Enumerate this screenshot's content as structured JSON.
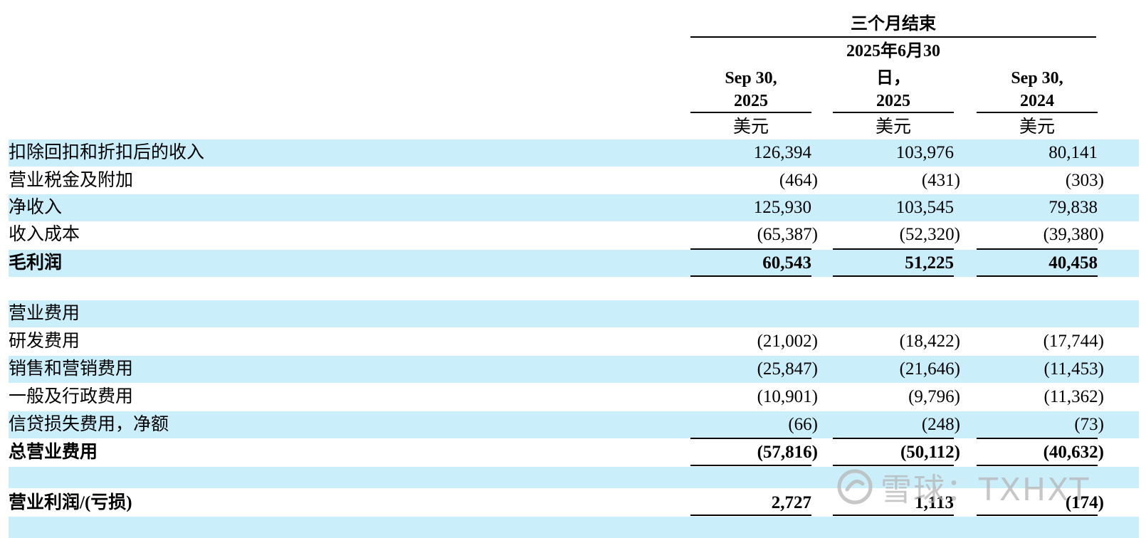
{
  "header": {
    "period_title": "三个月结束",
    "col1_date": "Sep 30,",
    "col1_year": "2025",
    "col2_date_a": "2025年6月30",
    "col2_date_b": "日，",
    "col2_year": "2025",
    "col3_date": "Sep 30,",
    "col3_year": "2024",
    "unit": "美元"
  },
  "rows": [
    {
      "label": "扣除回扣和折扣后的收入",
      "v1": "126,394",
      "v2": "103,976",
      "v3": "80,141"
    },
    {
      "label": "营业税金及附加",
      "v1": "(464)",
      "v2": "(431)",
      "v3": "(303)"
    },
    {
      "label": "净收入",
      "v1": "125,930",
      "v2": "103,545",
      "v3": "79,838"
    },
    {
      "label": "收入成本",
      "v1": "(65,387)",
      "v2": "(52,320)",
      "v3": "(39,380)"
    },
    {
      "label": "毛利润",
      "v1": "60,543",
      "v2": "51,225",
      "v3": "40,458"
    },
    {
      "label": "营业费用",
      "v1": "",
      "v2": "",
      "v3": ""
    },
    {
      "label": "研发费用",
      "v1": "(21,002)",
      "v2": "(18,422)",
      "v3": "(17,744)"
    },
    {
      "label": "销售和营销费用",
      "v1": "(25,847)",
      "v2": "(21,646)",
      "v3": "(11,453)"
    },
    {
      "label": "一般及行政费用",
      "v1": "(10,901)",
      "v2": "(9,796)",
      "v3": "(11,362)"
    },
    {
      "label": "信贷损失费用，净额",
      "v1": "(66)",
      "v2": "(248)",
      "v3": "(73)"
    },
    {
      "label": "总营业费用",
      "v1": "(57,816)",
      "v2": "(50,112)",
      "v3": "(40,632)"
    },
    {
      "label": "营业利润/(亏损)",
      "v1": "2,727",
      "v2": "1,113",
      "v3": "(174)"
    }
  ],
  "watermark": {
    "text": "雪球：TXHXT",
    "icon": "xueqiu-logo-icon"
  }
}
